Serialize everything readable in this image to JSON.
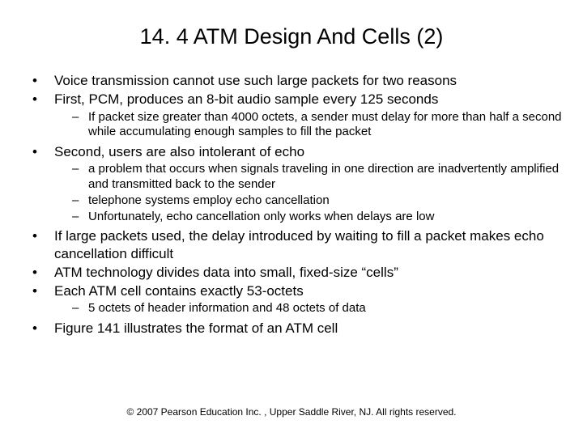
{
  "title": "14. 4 ATM Design And Cells (2)",
  "bullets": [
    {
      "text": "Voice transmission cannot use such large packets for two reasons"
    },
    {
      "text": "First, PCM, produces an 8-bit audio sample every 125 seconds",
      "sub": [
        "If packet size greater than 4000 octets, a sender must delay for more than half a second while accumulating enough samples to fill the packet"
      ]
    },
    {
      "text": "Second, users are also intolerant of  echo",
      "sub": [
        "a problem that occurs when signals traveling in one direction are inadvertently amplified and transmitted back to the sender",
        "telephone systems employ  echo cancellation",
        "Unfortunately, echo cancellation only works when delays are low"
      ]
    },
    {
      "text": "If large packets used, the delay introduced by waiting to fill a packet makes echo cancellation difficult"
    },
    {
      "text": "ATM technology divides data into small, fixed-size “cells”"
    },
    {
      "text": "Each ATM cell contains exactly 53-octets",
      "sub": [
        "5 octets of header information and 48 octets of data"
      ]
    },
    {
      "text": "Figure 141 illustrates the format of an ATM cell"
    }
  ],
  "copyright": "© 2007 Pearson Education Inc. , Upper Saddle River, NJ. All rights reserved.",
  "colors": {
    "background": "#ffffff",
    "text": "#000000"
  },
  "typography": {
    "title_fontsize": 27,
    "body_fontsize": 17,
    "sub_fontsize": 15,
    "copyright_fontsize": 12,
    "font_family": "Arial"
  }
}
